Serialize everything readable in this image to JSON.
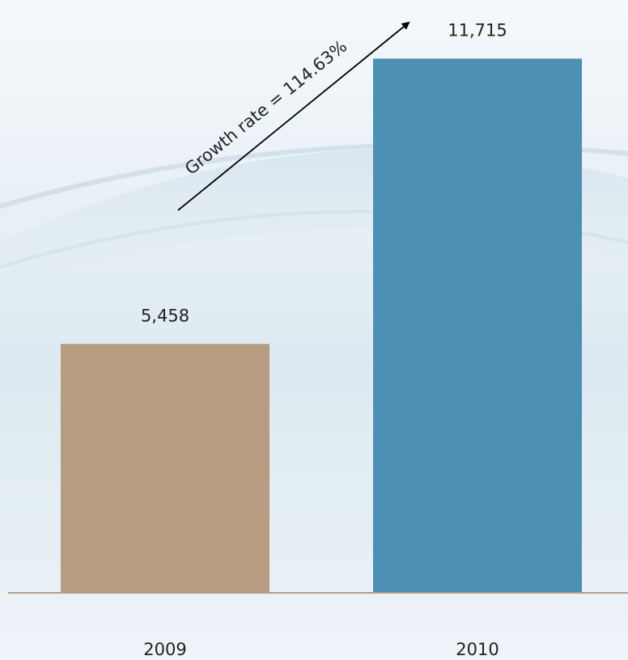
{
  "chart_data": {
    "type": "bar",
    "categories": [
      "2009",
      "2010"
    ],
    "values": [
      5458,
      11715
    ],
    "value_labels": [
      "5,458",
      "11,715"
    ],
    "colors": [
      "#b89c81",
      "#4d90b5"
    ],
    "ylim": [
      0,
      13000
    ],
    "grid": false,
    "annotation": "Growth rate = 114.63%"
  }
}
